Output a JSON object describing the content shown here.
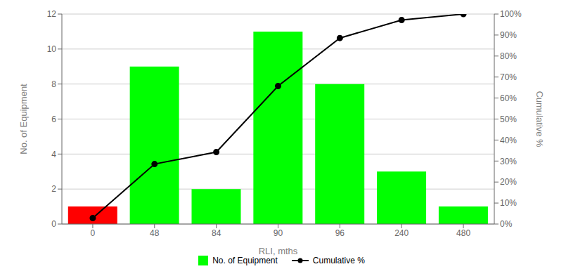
{
  "chart_data": {
    "type": "bar",
    "categories": [
      "0",
      "48",
      "84",
      "90",
      "96",
      "240",
      "480"
    ],
    "xlabel": "RLI, mths",
    "ylabel": "No. of Equipment",
    "y2label": "Cumulative %",
    "ylim": [
      0,
      12
    ],
    "yticks": [
      0,
      2,
      4,
      6,
      8,
      10,
      12
    ],
    "y2lim": [
      0,
      100
    ],
    "y2ticks": [
      {
        "value": 0,
        "label": "0%"
      },
      {
        "value": 10,
        "label": "10%"
      },
      {
        "value": 20,
        "label": "20%"
      },
      {
        "value": 30,
        "label": "30%"
      },
      {
        "value": 40,
        "label": "40%"
      },
      {
        "value": 50,
        "label": "50%"
      },
      {
        "value": 60,
        "label": "60%"
      },
      {
        "value": 70,
        "label": "70%"
      },
      {
        "value": 80,
        "label": "80%"
      },
      {
        "value": 90,
        "label": "90%"
      },
      {
        "value": 100,
        "label": "100%"
      }
    ],
    "grid": true,
    "legend": "bottom",
    "series": [
      {
        "name": "No. of Equipment",
        "type": "bar",
        "color": "#00ff00",
        "colors": [
          "#ff0000",
          "#00ff00",
          "#00ff00",
          "#00ff00",
          "#00ff00",
          "#00ff00",
          "#00ff00"
        ],
        "values": [
          1,
          9,
          2,
          11,
          8,
          3,
          1
        ]
      },
      {
        "name": "Cumulative %",
        "type": "line",
        "axis": "y2",
        "color": "#000000",
        "marker": "circle",
        "values": [
          2.857,
          28.571,
          34.286,
          65.714,
          88.571,
          97.143,
          100.0
        ]
      }
    ]
  }
}
